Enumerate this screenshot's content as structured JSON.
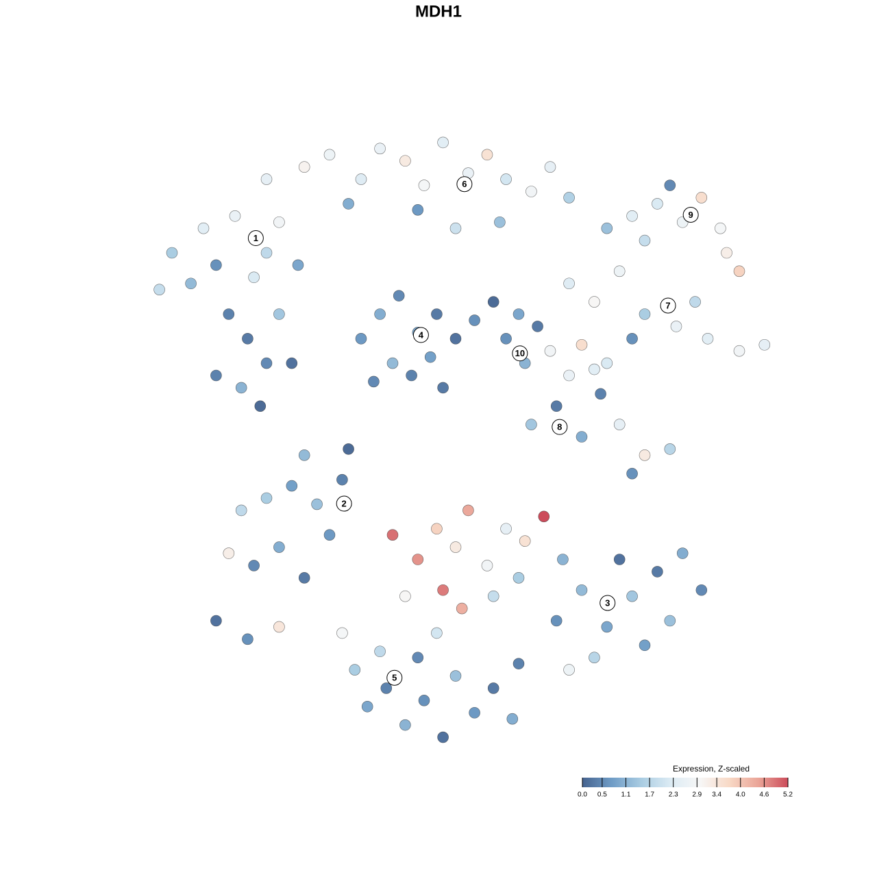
{
  "chart_data": {
    "type": "scatter",
    "title": "MDH1",
    "xlim": [
      0,
      100
    ],
    "ylim": [
      0,
      100
    ],
    "points": [
      {
        "x": 5,
        "y": 80,
        "value": 1.5
      },
      {
        "x": 8,
        "y": 75,
        "value": 1.2
      },
      {
        "x": 10,
        "y": 84,
        "value": 2.4
      },
      {
        "x": 12,
        "y": 78,
        "value": 0.6
      },
      {
        "x": 15,
        "y": 86,
        "value": 2.6
      },
      {
        "x": 18,
        "y": 76,
        "value": 2.2
      },
      {
        "x": 20,
        "y": 80,
        "value": 1.8
      },
      {
        "x": 22,
        "y": 85,
        "value": 2.8
      },
      {
        "x": 14,
        "y": 70,
        "value": 0.4
      },
      {
        "x": 17,
        "y": 66,
        "value": 0.3
      },
      {
        "x": 20,
        "y": 62,
        "value": 0.5
      },
      {
        "x": 12,
        "y": 60,
        "value": 0.4
      },
      {
        "x": 16,
        "y": 58,
        "value": 1.1
      },
      {
        "x": 22,
        "y": 70,
        "value": 1.4
      },
      {
        "x": 24,
        "y": 62,
        "value": 0.2
      },
      {
        "x": 3,
        "y": 74,
        "value": 1.9
      },
      {
        "x": 25,
        "y": 78,
        "value": 0.9
      },
      {
        "x": 19,
        "y": 55,
        "value": 0.1
      },
      {
        "x": 20,
        "y": 92,
        "value": 2.5
      },
      {
        "x": 26,
        "y": 94,
        "value": 3.1
      },
      {
        "x": 30,
        "y": 96,
        "value": 2.7
      },
      {
        "x": 35,
        "y": 92,
        "value": 2.3
      },
      {
        "x": 38,
        "y": 97,
        "value": 2.6
      },
      {
        "x": 42,
        "y": 95,
        "value": 3.3
      },
      {
        "x": 45,
        "y": 91,
        "value": 2.9
      },
      {
        "x": 48,
        "y": 98,
        "value": 2.4
      },
      {
        "x": 52,
        "y": 93,
        "value": 2.6
      },
      {
        "x": 55,
        "y": 96,
        "value": 3.5
      },
      {
        "x": 58,
        "y": 92,
        "value": 2.1
      },
      {
        "x": 62,
        "y": 90,
        "value": 2.8
      },
      {
        "x": 65,
        "y": 94,
        "value": 2.5
      },
      {
        "x": 68,
        "y": 89,
        "value": 1.6
      },
      {
        "x": 33,
        "y": 88,
        "value": 1.0
      },
      {
        "x": 44,
        "y": 87,
        "value": 0.7
      },
      {
        "x": 57,
        "y": 85,
        "value": 1.3
      },
      {
        "x": 50,
        "y": 84,
        "value": 2.0
      },
      {
        "x": 74,
        "y": 84,
        "value": 1.3
      },
      {
        "x": 78,
        "y": 86,
        "value": 2.4
      },
      {
        "x": 82,
        "y": 88,
        "value": 2.2
      },
      {
        "x": 86,
        "y": 85,
        "value": 2.7
      },
      {
        "x": 89,
        "y": 89,
        "value": 3.6
      },
      {
        "x": 92,
        "y": 84,
        "value": 2.9
      },
      {
        "x": 93,
        "y": 80,
        "value": 3.2
      },
      {
        "x": 80,
        "y": 82,
        "value": 1.9
      },
      {
        "x": 95,
        "y": 77,
        "value": 3.8
      },
      {
        "x": 84,
        "y": 91,
        "value": 0.5
      },
      {
        "x": 68,
        "y": 75,
        "value": 2.3
      },
      {
        "x": 72,
        "y": 72,
        "value": 3.0
      },
      {
        "x": 76,
        "y": 77,
        "value": 2.7
      },
      {
        "x": 80,
        "y": 70,
        "value": 1.5
      },
      {
        "x": 85,
        "y": 68,
        "value": 2.6
      },
      {
        "x": 90,
        "y": 66,
        "value": 2.4
      },
      {
        "x": 95,
        "y": 64,
        "value": 2.8
      },
      {
        "x": 99,
        "y": 65,
        "value": 2.5
      },
      {
        "x": 88,
        "y": 72,
        "value": 1.8
      },
      {
        "x": 78,
        "y": 66,
        "value": 0.6
      },
      {
        "x": 70,
        "y": 65,
        "value": 3.6
      },
      {
        "x": 74,
        "y": 62,
        "value": 2.2
      },
      {
        "x": 35,
        "y": 66,
        "value": 0.7
      },
      {
        "x": 38,
        "y": 70,
        "value": 1.0
      },
      {
        "x": 41,
        "y": 73,
        "value": 0.5
      },
      {
        "x": 44,
        "y": 67,
        "value": 0.9
      },
      {
        "x": 47,
        "y": 70,
        "value": 0.3
      },
      {
        "x": 40,
        "y": 62,
        "value": 1.2
      },
      {
        "x": 43,
        "y": 60,
        "value": 0.4
      },
      {
        "x": 46,
        "y": 63,
        "value": 0.8
      },
      {
        "x": 50,
        "y": 66,
        "value": 0.2
      },
      {
        "x": 53,
        "y": 69,
        "value": 0.6
      },
      {
        "x": 56,
        "y": 72,
        "value": 0.1
      },
      {
        "x": 37,
        "y": 59,
        "value": 0.5
      },
      {
        "x": 48,
        "y": 58,
        "value": 0.3
      },
      {
        "x": 58,
        "y": 66,
        "value": 0.6
      },
      {
        "x": 61,
        "y": 62,
        "value": 1.1
      },
      {
        "x": 63,
        "y": 68,
        "value": 0.3
      },
      {
        "x": 60,
        "y": 70,
        "value": 0.9
      },
      {
        "x": 65,
        "y": 64,
        "value": 2.8
      },
      {
        "x": 62,
        "y": 52,
        "value": 1.4
      },
      {
        "x": 66,
        "y": 55,
        "value": 0.3
      },
      {
        "x": 70,
        "y": 50,
        "value": 1.0
      },
      {
        "x": 73,
        "y": 57,
        "value": 0.4
      },
      {
        "x": 76,
        "y": 52,
        "value": 2.5
      },
      {
        "x": 80,
        "y": 47,
        "value": 3.3
      },
      {
        "x": 84,
        "y": 48,
        "value": 1.7
      },
      {
        "x": 78,
        "y": 44,
        "value": 0.6
      },
      {
        "x": 68,
        "y": 60,
        "value": 2.6
      },
      {
        "x": 72,
        "y": 61,
        "value": 2.4
      },
      {
        "x": 16,
        "y": 38,
        "value": 1.8
      },
      {
        "x": 20,
        "y": 40,
        "value": 1.5
      },
      {
        "x": 24,
        "y": 42,
        "value": 0.8
      },
      {
        "x": 28,
        "y": 39,
        "value": 1.3
      },
      {
        "x": 32,
        "y": 43,
        "value": 0.4
      },
      {
        "x": 14,
        "y": 31,
        "value": 3.2
      },
      {
        "x": 18,
        "y": 29,
        "value": 0.5
      },
      {
        "x": 22,
        "y": 32,
        "value": 1.0
      },
      {
        "x": 26,
        "y": 27,
        "value": 0.3
      },
      {
        "x": 12,
        "y": 20,
        "value": 0.2
      },
      {
        "x": 17,
        "y": 17,
        "value": 0.6
      },
      {
        "x": 22,
        "y": 19,
        "value": 3.4
      },
      {
        "x": 30,
        "y": 34,
        "value": 0.7
      },
      {
        "x": 40,
        "y": 34,
        "value": 4.9
      },
      {
        "x": 44,
        "y": 30,
        "value": 4.6
      },
      {
        "x": 47,
        "y": 35,
        "value": 3.8
      },
      {
        "x": 50,
        "y": 32,
        "value": 3.3
      },
      {
        "x": 52,
        "y": 38,
        "value": 4.4
      },
      {
        "x": 55,
        "y": 29,
        "value": 2.8
      },
      {
        "x": 58,
        "y": 35,
        "value": 2.5
      },
      {
        "x": 61,
        "y": 33,
        "value": 3.5
      },
      {
        "x": 64,
        "y": 37,
        "value": 5.2
      },
      {
        "x": 48,
        "y": 25,
        "value": 4.8
      },
      {
        "x": 51,
        "y": 22,
        "value": 4.3
      },
      {
        "x": 42,
        "y": 24,
        "value": 3.0
      },
      {
        "x": 56,
        "y": 24,
        "value": 1.9
      },
      {
        "x": 60,
        "y": 27,
        "value": 1.5
      },
      {
        "x": 67,
        "y": 30,
        "value": 1.1
      },
      {
        "x": 66,
        "y": 20,
        "value": 0.6
      },
      {
        "x": 70,
        "y": 25,
        "value": 1.2
      },
      {
        "x": 74,
        "y": 19,
        "value": 0.9
      },
      {
        "x": 78,
        "y": 24,
        "value": 1.4
      },
      {
        "x": 82,
        "y": 28,
        "value": 0.3
      },
      {
        "x": 86,
        "y": 31,
        "value": 1.0
      },
      {
        "x": 89,
        "y": 25,
        "value": 0.5
      },
      {
        "x": 72,
        "y": 14,
        "value": 1.7
      },
      {
        "x": 80,
        "y": 16,
        "value": 0.8
      },
      {
        "x": 76,
        "y": 30,
        "value": 0.2
      },
      {
        "x": 84,
        "y": 20,
        "value": 1.3
      },
      {
        "x": 68,
        "y": 12,
        "value": 2.7
      },
      {
        "x": 32,
        "y": 18,
        "value": 2.9
      },
      {
        "x": 34,
        "y": 12,
        "value": 1.5
      },
      {
        "x": 36,
        "y": 6,
        "value": 0.9
      },
      {
        "x": 39,
        "y": 9,
        "value": 0.4
      },
      {
        "x": 42,
        "y": 3,
        "value": 1.1
      },
      {
        "x": 45,
        "y": 7,
        "value": 0.6
      },
      {
        "x": 48,
        "y": 1,
        "value": 0.2
      },
      {
        "x": 50,
        "y": 11,
        "value": 1.3
      },
      {
        "x": 53,
        "y": 5,
        "value": 0.7
      },
      {
        "x": 56,
        "y": 9,
        "value": 0.3
      },
      {
        "x": 59,
        "y": 4,
        "value": 1.0
      },
      {
        "x": 38,
        "y": 15,
        "value": 1.8
      },
      {
        "x": 44,
        "y": 14,
        "value": 0.5
      },
      {
        "x": 47,
        "y": 18,
        "value": 2.1
      },
      {
        "x": 60,
        "y": 13,
        "value": 0.4
      },
      {
        "x": 26,
        "y": 47,
        "value": 1.2
      },
      {
        "x": 33,
        "y": 48,
        "value": 0.1
      }
    ],
    "clusters": [
      {
        "label": "1",
        "x": 18.3,
        "y": 82.4
      },
      {
        "label": "2",
        "x": 32.3,
        "y": 39.1
      },
      {
        "label": "3",
        "x": 74.1,
        "y": 22.9
      },
      {
        "label": "4",
        "x": 44.5,
        "y": 66.6
      },
      {
        "label": "5",
        "x": 40.3,
        "y": 10.7
      },
      {
        "label": "6",
        "x": 51.4,
        "y": 91.2
      },
      {
        "label": "7",
        "x": 83.7,
        "y": 71.4
      },
      {
        "label": "8",
        "x": 66.5,
        "y": 51.6
      },
      {
        "label": "9",
        "x": 87.3,
        "y": 86.2
      },
      {
        "label": "10",
        "x": 60.2,
        "y": 63.6
      }
    ],
    "colorbar": {
      "title": "Expression, Z-scaled",
      "lim": [
        0,
        5.2
      ],
      "ticks": [
        {
          "value": 0,
          "label": "0.0"
        },
        0.5,
        1.1,
        1.7,
        2.3,
        2.9,
        3.4,
        {
          "value": 4,
          "label": "4.0"
        },
        4.6,
        5.2
      ],
      "colors": [
        "#46638f",
        "#6f9cc6",
        "#a9cce2",
        "#dcebf4",
        "#f7f7f7",
        "#f8d9c6",
        "#eaa497",
        "#cc4c5b"
      ]
    }
  }
}
